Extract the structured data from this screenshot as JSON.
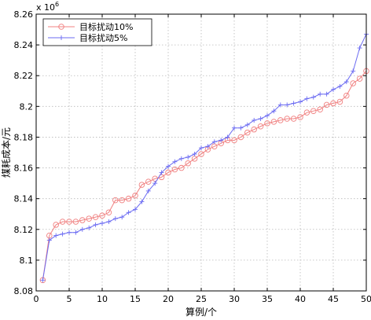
{
  "chart_data": {
    "type": "line",
    "title": "",
    "xlabel": "算例/个",
    "ylabel": "煤耗成本/元",
    "y_scale_note": "x 10",
    "y_scale_exponent": "6",
    "xlim": [
      0,
      50
    ],
    "ylim": [
      8.08,
      8.26
    ],
    "x_ticks": [
      0,
      5,
      10,
      15,
      20,
      25,
      30,
      35,
      40,
      45,
      50
    ],
    "y_ticks": [
      8.08,
      8.1,
      8.12,
      8.14,
      8.16,
      8.18,
      8.2,
      8.22,
      8.24,
      8.26
    ],
    "y_tick_labels": [
      "8.08",
      "8.1",
      "8.12",
      "8.14",
      "8.16",
      "8.18",
      "8.2",
      "8.22",
      "8.24",
      "8.26"
    ],
    "grid": true,
    "legend_position": "top-left",
    "x": [
      1,
      2,
      3,
      4,
      5,
      6,
      7,
      8,
      9,
      10,
      11,
      12,
      13,
      14,
      15,
      16,
      17,
      18,
      19,
      20,
      21,
      22,
      23,
      24,
      25,
      26,
      27,
      28,
      29,
      30,
      31,
      32,
      33,
      34,
      35,
      36,
      37,
      38,
      39,
      40,
      41,
      42,
      43,
      44,
      45,
      46,
      47,
      48,
      49,
      50
    ],
    "series": [
      {
        "name": "目标扰动10%",
        "color": "#f08080",
        "marker": "circle",
        "values": [
          8.087,
          8.116,
          8.123,
          8.125,
          8.125,
          8.125,
          8.126,
          8.127,
          8.128,
          8.129,
          8.131,
          8.139,
          8.139,
          8.14,
          8.142,
          8.149,
          8.151,
          8.153,
          8.154,
          8.157,
          8.159,
          8.16,
          8.163,
          8.166,
          8.169,
          8.172,
          8.174,
          8.176,
          8.178,
          8.178,
          8.18,
          8.183,
          8.185,
          8.187,
          8.189,
          8.19,
          8.191,
          8.192,
          8.192,
          8.193,
          8.196,
          8.197,
          8.198,
          8.201,
          8.202,
          8.203,
          8.207,
          8.215,
          8.218,
          8.223
        ]
      },
      {
        "name": "目标扰动5%",
        "color": "#6b6bf2",
        "marker": "plus",
        "values": [
          8.087,
          8.113,
          8.116,
          8.117,
          8.118,
          8.118,
          8.12,
          8.121,
          8.123,
          8.124,
          8.125,
          8.127,
          8.128,
          8.131,
          8.133,
          8.138,
          8.145,
          8.15,
          8.157,
          8.161,
          8.164,
          8.166,
          8.167,
          8.169,
          8.173,
          8.174,
          8.177,
          8.178,
          8.18,
          8.186,
          8.186,
          8.188,
          8.191,
          8.192,
          8.194,
          8.197,
          8.201,
          8.201,
          8.202,
          8.203,
          8.205,
          8.206,
          8.208,
          8.208,
          8.211,
          8.213,
          8.216,
          8.223,
          8.238,
          8.247
        ]
      }
    ]
  }
}
